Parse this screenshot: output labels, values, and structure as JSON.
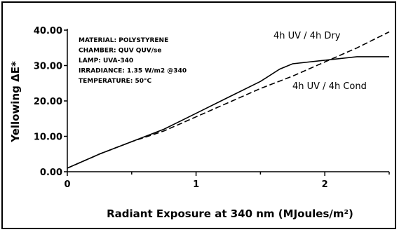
{
  "chart_data": {
    "type": "line",
    "title": "",
    "xlabel": "Radiant Exposure at 340 nm (MJoules/m²)",
    "ylabel": "Yellowing ΔE*",
    "xlim": [
      0,
      2.5
    ],
    "ylim": [
      0,
      40
    ],
    "x_ticks": [
      "0",
      "1",
      "2"
    ],
    "y_ticks": [
      "0.00",
      "10.00",
      "20.00",
      "30.00",
      "40.00"
    ],
    "grid": false,
    "info_lines": [
      "MATERIAL: POLYSTYRENE",
      "CHAMBER: QUV    QUV/se",
      "LAMP: UVA-340",
      "IRRADIANCE: 1.35 W/m2 @340",
      "TEMPERATURE: 50°C"
    ],
    "series": [
      {
        "name": "4h UV / 4h Dry",
        "line_style": "dashed",
        "x": [
          0,
          0.25,
          0.5,
          0.75,
          1.0,
          1.25,
          1.5,
          1.75,
          2.0,
          2.25,
          2.5
        ],
        "y": [
          1,
          5,
          8.5,
          11.5,
          15.5,
          19.5,
          23.5,
          27,
          31,
          35,
          39.5
        ]
      },
      {
        "name": "4h UV / 4h Cond",
        "line_style": "solid",
        "x": [
          0,
          0.25,
          0.5,
          0.75,
          1.0,
          1.25,
          1.5,
          1.65,
          1.75,
          2.0,
          2.25,
          2.5
        ],
        "y": [
          1,
          5,
          8.5,
          12,
          16.5,
          21,
          25.5,
          29,
          30.5,
          31.5,
          32.5,
          32.5
        ]
      }
    ]
  }
}
